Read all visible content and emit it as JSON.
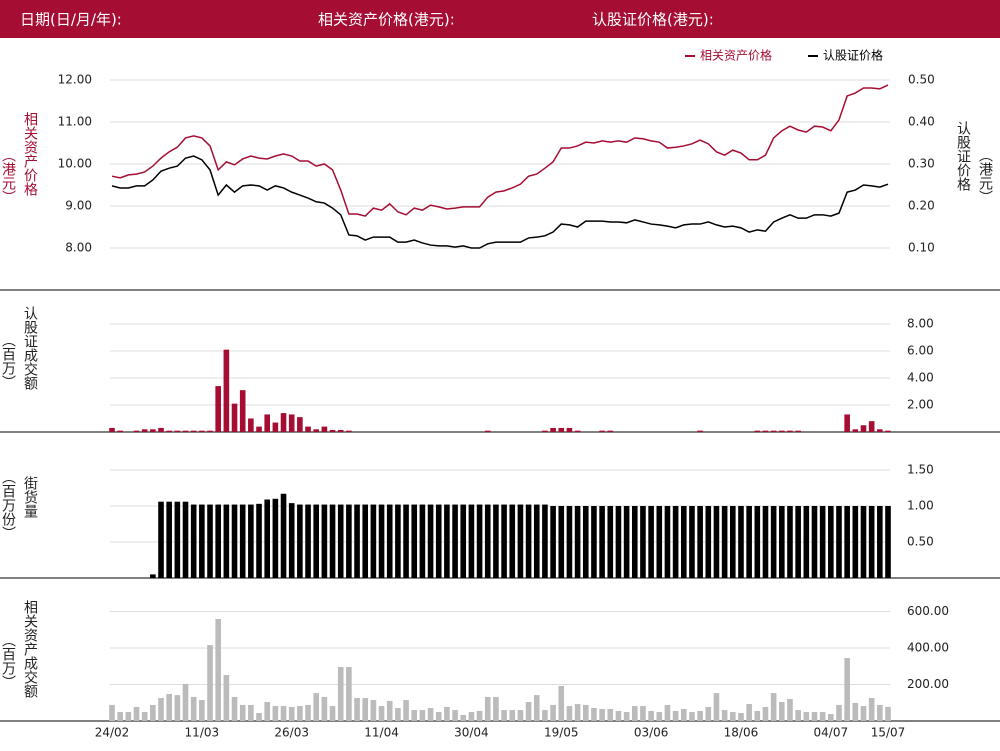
{
  "header": {
    "labels": [
      "日期(日/月/年):",
      "相关资产价格(港元):",
      "认股证价格(港元):"
    ]
  },
  "chart_data": [
    {
      "type": "line",
      "ylabel": [
        "相关资产价格",
        "（港元）"
      ],
      "y2label": [
        "认股证价格",
        "（港元）"
      ],
      "legend": "top-right",
      "grid": true,
      "ylim": [
        7.6,
        12.4
      ],
      "yticks": [
        {
          "value": 8,
          "label": "8.00"
        },
        {
          "value": 9,
          "label": "9.00"
        },
        {
          "value": 10,
          "label": "10.00"
        },
        {
          "value": 11,
          "label": "11.00"
        },
        {
          "value": 12,
          "label": "12.00"
        }
      ],
      "y2lim": [
        0.06,
        0.54
      ],
      "y2ticks": [
        {
          "value": 0.1,
          "label": "0.10"
        },
        {
          "value": 0.2,
          "label": "0.20"
        },
        {
          "value": 0.3,
          "label": "0.30"
        },
        {
          "value": 0.4,
          "label": "0.40"
        },
        {
          "value": 0.5,
          "label": "0.50"
        }
      ],
      "series": [
        {
          "name": "相关资产价格",
          "color": "#a50d33",
          "values": [
            9.71,
            9.67,
            9.74,
            9.76,
            9.81,
            9.95,
            10.14,
            10.29,
            10.4,
            10.62,
            10.67,
            10.62,
            10.43,
            9.86,
            10.05,
            9.98,
            10.12,
            10.19,
            10.14,
            10.12,
            10.19,
            10.24,
            10.19,
            10.07,
            10.07,
            9.95,
            10.0,
            9.86,
            9.38,
            8.81,
            8.81,
            8.76,
            8.95,
            8.9,
            9.05,
            8.86,
            8.79,
            8.95,
            8.9,
            9.02,
            8.98,
            8.93,
            8.95,
            8.98,
            8.98,
            8.98,
            9.21,
            9.33,
            9.36,
            9.43,
            9.52,
            9.71,
            9.76,
            9.9,
            10.05,
            10.38,
            10.38,
            10.43,
            10.52,
            10.5,
            10.55,
            10.52,
            10.55,
            10.52,
            10.62,
            10.6,
            10.55,
            10.52,
            10.38,
            10.4,
            10.43,
            10.48,
            10.57,
            10.48,
            10.29,
            10.21,
            10.33,
            10.26,
            10.1,
            10.1,
            10.21,
            10.62,
            10.79,
            10.9,
            10.81,
            10.76,
            10.9,
            10.88,
            10.79,
            11.05,
            11.62,
            11.69,
            11.81,
            11.81,
            11.79,
            11.88
          ]
        },
        {
          "name": "认股证价格",
          "color": "#000000",
          "axis": "y2",
          "values": [
            0.248,
            0.243,
            0.243,
            0.248,
            0.248,
            0.262,
            0.283,
            0.29,
            0.295,
            0.314,
            0.319,
            0.31,
            0.286,
            0.226,
            0.25,
            0.233,
            0.248,
            0.25,
            0.248,
            0.238,
            0.248,
            0.243,
            0.233,
            0.226,
            0.219,
            0.21,
            0.207,
            0.195,
            0.179,
            0.131,
            0.129,
            0.119,
            0.126,
            0.126,
            0.126,
            0.114,
            0.114,
            0.119,
            0.112,
            0.107,
            0.105,
            0.105,
            0.102,
            0.105,
            0.1,
            0.1,
            0.11,
            0.114,
            0.114,
            0.114,
            0.114,
            0.124,
            0.126,
            0.129,
            0.138,
            0.157,
            0.155,
            0.15,
            0.164,
            0.164,
            0.164,
            0.162,
            0.162,
            0.16,
            0.167,
            0.162,
            0.157,
            0.155,
            0.152,
            0.148,
            0.155,
            0.157,
            0.157,
            0.162,
            0.155,
            0.15,
            0.152,
            0.148,
            0.138,
            0.143,
            0.14,
            0.162,
            0.171,
            0.179,
            0.171,
            0.171,
            0.179,
            0.179,
            0.176,
            0.183,
            0.233,
            0.238,
            0.25,
            0.248,
            0.245,
            0.252
          ]
        }
      ]
    },
    {
      "type": "bar",
      "ylabel": [
        "认股证成交额",
        "（百万）"
      ],
      "color": "#a50d33",
      "grid": true,
      "ylim": [
        0,
        8.5
      ],
      "yticks": [
        {
          "value": 2,
          "label": "2.00"
        },
        {
          "value": 4,
          "label": "4.00"
        },
        {
          "value": 6,
          "label": "6.00"
        },
        {
          "value": 8,
          "label": "8.00"
        }
      ],
      "values": [
        0.3,
        0.1,
        0,
        0.1,
        0.2,
        0.2,
        0.3,
        0.1,
        0.1,
        0.1,
        0.1,
        0.1,
        0.1,
        3.4,
        6.1,
        2.1,
        3.1,
        1.0,
        0.4,
        1.3,
        0.7,
        1.4,
        1.3,
        1.1,
        0.4,
        0.2,
        0.4,
        0.15,
        0.15,
        0.1,
        0,
        0,
        0,
        0,
        0,
        0,
        0,
        0,
        0,
        0,
        0,
        0,
        0,
        0,
        0,
        0,
        0.1,
        0,
        0,
        0,
        0,
        0,
        0,
        0.1,
        0.3,
        0.3,
        0.3,
        0.1,
        0,
        0,
        0.1,
        0.1,
        0,
        0,
        0,
        0,
        0,
        0,
        0,
        0,
        0,
        0,
        0.1,
        0,
        0,
        0,
        0,
        0,
        0,
        0.1,
        0.1,
        0.1,
        0.1,
        0.1,
        0.1,
        0,
        0,
        0,
        0,
        0,
        1.3,
        0.2,
        0.5,
        0.8,
        0.2,
        0.1
      ]
    },
    {
      "type": "bar",
      "ylabel": [
        "街货量",
        "（百万份）"
      ],
      "color": "#000000",
      "grid": true,
      "ylim": [
        0,
        1.6
      ],
      "yticks": [
        {
          "value": 0.5,
          "label": "0.50"
        },
        {
          "value": 1,
          "label": "1.00"
        },
        {
          "value": 1.5,
          "label": "1.50"
        }
      ],
      "values": [
        0,
        0,
        0,
        0,
        0,
        0.05,
        1.06,
        1.06,
        1.06,
        1.06,
        1.02,
        1.02,
        1.02,
        1.02,
        1.02,
        1.02,
        1.02,
        1.02,
        1.03,
        1.09,
        1.1,
        1.17,
        1.04,
        1.02,
        1.02,
        1.02,
        1.02,
        1.02,
        1.02,
        1.02,
        1.02,
        1.02,
        1.02,
        1.02,
        1.02,
        1.02,
        1.02,
        1.02,
        1.02,
        1.02,
        1.02,
        1.02,
        1.02,
        1.02,
        1.02,
        1.02,
        1.02,
        1.02,
        1.02,
        1.02,
        1.02,
        1.02,
        1.02,
        1.02,
        1.0,
        1.0,
        1.0,
        1.0,
        1.0,
        1.0,
        1.0,
        1.0,
        1.0,
        1.0,
        1.0,
        1.0,
        1.0,
        1.0,
        1.0,
        1.0,
        1.0,
        1.0,
        1.0,
        1.0,
        1.0,
        1.0,
        1.0,
        1.0,
        1.0,
        1.0,
        1.0,
        1.0,
        1.0,
        1.0,
        1.0,
        1.0,
        1.0,
        1.0,
        1.0,
        1.0,
        1.0,
        1.0,
        1.0,
        1.0,
        1.0,
        1.0
      ]
    },
    {
      "type": "bar",
      "ylabel": [
        "相关资产成交额",
        "（百万）"
      ],
      "color": "#bbbbbb",
      "grid": true,
      "ylim": [
        0,
        650
      ],
      "yticks": [
        {
          "value": 200,
          "label": "200.00"
        },
        {
          "value": 400,
          "label": "400.00"
        },
        {
          "value": 600,
          "label": "600.00"
        }
      ],
      "categories": [
        "24/02",
        null,
        null,
        null,
        null,
        null,
        null,
        null,
        null,
        null,
        null,
        "11/03",
        null,
        null,
        null,
        null,
        null,
        null,
        null,
        null,
        null,
        null,
        "26/03",
        null,
        null,
        null,
        null,
        null,
        null,
        null,
        null,
        null,
        null,
        "11/04",
        null,
        null,
        null,
        null,
        null,
        null,
        null,
        null,
        null,
        null,
        "30/04",
        null,
        null,
        null,
        null,
        null,
        null,
        null,
        null,
        null,
        null,
        "19/05",
        null,
        null,
        null,
        null,
        null,
        null,
        null,
        null,
        null,
        null,
        "03/06",
        null,
        null,
        null,
        null,
        null,
        null,
        null,
        null,
        null,
        null,
        "18/06",
        null,
        null,
        null,
        null,
        null,
        null,
        null,
        null,
        null,
        null,
        "04/07",
        null,
        null,
        null,
        null,
        null,
        null,
        "15/07"
      ],
      "values": [
        88,
        49,
        49,
        77,
        49,
        88,
        126,
        148,
        142,
        203,
        132,
        115,
        416,
        559,
        252,
        132,
        88,
        88,
        44,
        104,
        82,
        82,
        77,
        82,
        88,
        153,
        132,
        82,
        296,
        296,
        126,
        126,
        115,
        82,
        110,
        71,
        115,
        60,
        60,
        71,
        49,
        77,
        60,
        33,
        49,
        55,
        132,
        132,
        60,
        60,
        60,
        104,
        142,
        60,
        88,
        192,
        82,
        93,
        88,
        71,
        66,
        66,
        55,
        49,
        82,
        82,
        55,
        49,
        88,
        55,
        66,
        49,
        55,
        77,
        153,
        60,
        49,
        44,
        93,
        55,
        77,
        153,
        104,
        121,
        60,
        49,
        49,
        49,
        38,
        88,
        345,
        99,
        82,
        126,
        88,
        77
      ]
    }
  ]
}
